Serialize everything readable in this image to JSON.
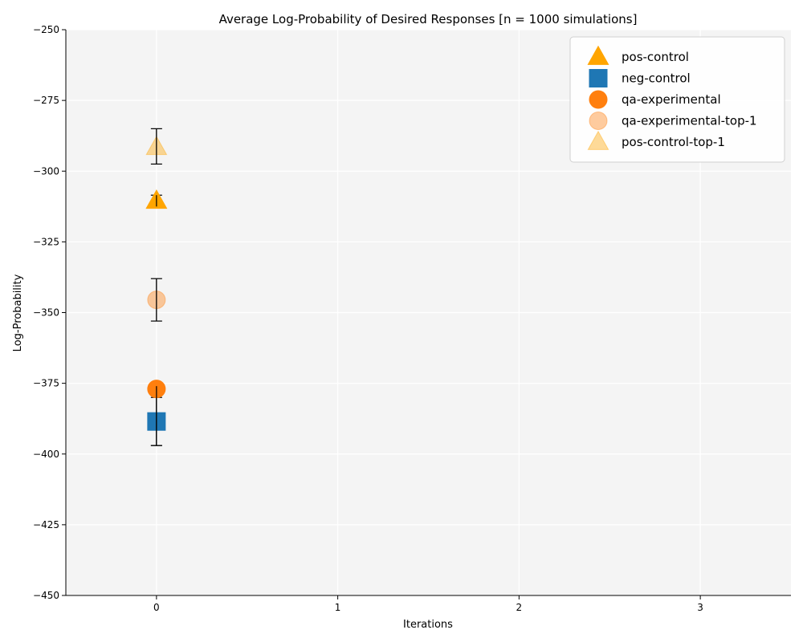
{
  "chart_data": {
    "type": "scatter",
    "title": "Average Log-Probability of Desired Responses [n = 1000 simulations]",
    "xlabel": "Iterations",
    "ylabel": "Log-Probability",
    "xlim": [
      -0.5,
      3.5
    ],
    "ylim": [
      -450,
      -250
    ],
    "x_ticks": [
      "0",
      "1",
      "2",
      "3"
    ],
    "y_ticks": [
      "−250",
      "−275",
      "−300",
      "−325",
      "−350",
      "−375",
      "−400",
      "−425",
      "−450"
    ],
    "grid": true,
    "legend_position": "top-right",
    "series": [
      {
        "name": "pos-control",
        "marker": "triangle",
        "color": "#ffa500",
        "opacity": 1.0,
        "x": [
          0
        ],
        "y": [
          -310.5
        ],
        "err_low": [
          -312.5
        ],
        "err_high": [
          -308.5
        ]
      },
      {
        "name": "neg-control",
        "marker": "square",
        "color": "#1f77b4",
        "opacity": 1.0,
        "x": [
          0
        ],
        "y": [
          -388.5
        ],
        "err_low": [
          -397
        ],
        "err_high": [
          -380
        ]
      },
      {
        "name": "qa-experimental",
        "marker": "circle",
        "color": "#ff7f0e",
        "opacity": 1.0,
        "x": [
          0
        ],
        "y": [
          -377
        ],
        "err_low": [
          -397
        ],
        "err_high": [
          -376
        ]
      },
      {
        "name": "qa-experimental-top-1",
        "marker": "circle",
        "color": "#ff7f0e",
        "opacity": 0.4,
        "x": [
          0
        ],
        "y": [
          -345.5
        ],
        "err_low": [
          -353
        ],
        "err_high": [
          -338
        ]
      },
      {
        "name": "pos-control-top-1",
        "marker": "triangle",
        "color": "#ffa500",
        "opacity": 0.4,
        "x": [
          0
        ],
        "y": [
          -291.5
        ],
        "err_low": [
          -297.5
        ],
        "err_high": [
          -285
        ]
      }
    ]
  }
}
